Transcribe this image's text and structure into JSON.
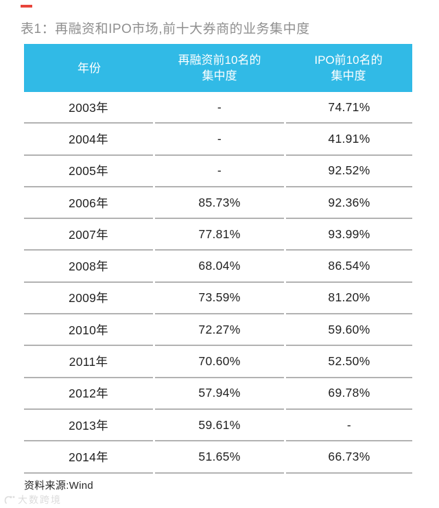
{
  "title": "表1：再融资和IPO市场,前十大券商的业务集中度",
  "colors": {
    "header_bg": "#31bae6",
    "header_text": "#ffffff",
    "accent_red": "#e8443b",
    "divider": "#b2b2b2",
    "title_text": "#8f8f8f",
    "body_text": "#1f1f1f",
    "watermark": "#dcdcdc"
  },
  "table": {
    "columns": [
      "年份",
      "再融资前10名的\n集中度",
      "IPO前10名的\n集中度"
    ],
    "rows": [
      {
        "year": "2003年",
        "refi": "-",
        "ipo": "74.71%"
      },
      {
        "year": "2004年",
        "refi": "-",
        "ipo": "41.91%"
      },
      {
        "year": "2005年",
        "refi": "-",
        "ipo": "92.52%"
      },
      {
        "year": "2006年",
        "refi": "85.73%",
        "ipo": "92.36%"
      },
      {
        "year": "2007年",
        "refi": "77.81%",
        "ipo": "93.99%"
      },
      {
        "year": "2008年",
        "refi": "68.04%",
        "ipo": "86.54%"
      },
      {
        "year": "2009年",
        "refi": "73.59%",
        "ipo": "81.20%"
      },
      {
        "year": "2010年",
        "refi": "72.27%",
        "ipo": "59.60%"
      },
      {
        "year": "2011年",
        "refi": "70.60%",
        "ipo": "52.50%"
      },
      {
        "year": "2012年",
        "refi": "57.94%",
        "ipo": "69.78%"
      },
      {
        "year": "2013年",
        "refi": "59.61%",
        "ipo": "-"
      },
      {
        "year": "2014年",
        "refi": "51.65%",
        "ipo": "66.73%"
      }
    ]
  },
  "footer": {
    "source": "资料来源:Wind"
  },
  "watermark": {
    "text": "大数跨境"
  }
}
